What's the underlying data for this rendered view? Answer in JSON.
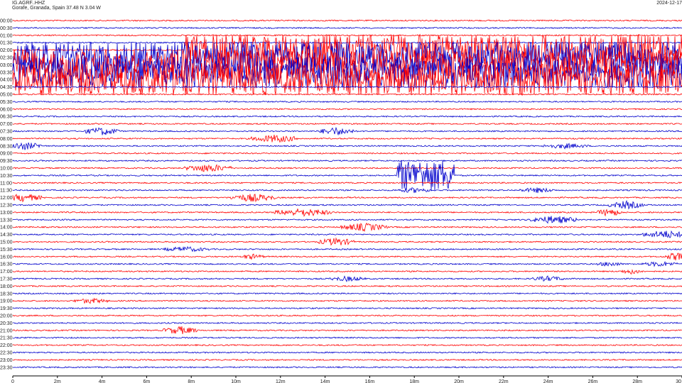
{
  "header": {
    "station": "IG.AGRF..HHZ",
    "location": "Gorafe, Granada, Spain  37.48 N 3.04 W",
    "date": "2024-12-17"
  },
  "chart_data": {
    "type": "line",
    "title": "",
    "xlabel": "",
    "ylabel": "",
    "row_labels": [
      "00:00",
      "00:30",
      "01:00",
      "01:30",
      "02:00",
      "02:30",
      "03:00",
      "03:30",
      "04:00",
      "04:30",
      "05:00",
      "05:30",
      "06:00",
      "06:30",
      "07:00",
      "07:30",
      "08:00",
      "08:30",
      "09:00",
      "09:30",
      "10:00",
      "10:30",
      "11:00",
      "11:30",
      "12:00",
      "12:30",
      "13:00",
      "13:30",
      "14:00",
      "14:30",
      "15:00",
      "15:30",
      "16:00",
      "16:30",
      "17:00",
      "17:30",
      "18:00",
      "18:30",
      "19:00",
      "19:30",
      "20:00",
      "20:30",
      "21:00",
      "21:30",
      "22:00",
      "22:30",
      "23:00",
      "23:30"
    ],
    "x_tick_values": [
      0,
      2,
      4,
      6,
      8,
      10,
      12,
      14,
      16,
      18,
      20,
      22,
      24,
      26,
      28,
      30
    ],
    "x_tick_labels": [
      "0",
      "2m",
      "4m",
      "6m",
      "8m",
      "10m",
      "12m",
      "14m",
      "16m",
      "18m",
      "20m",
      "22m",
      "24m",
      "26m",
      "28m",
      "30"
    ],
    "xlim": [
      0,
      30
    ],
    "trace_colors": [
      "#ff0000",
      "#0000cc"
    ],
    "events": [
      {
        "row": "02:00",
        "start_min": 8,
        "end_min": 30,
        "amplitude": "large"
      },
      {
        "row": "02:30",
        "start_min": 0,
        "end_min": 30,
        "amplitude": "large"
      },
      {
        "row": "03:00",
        "start_min": 0,
        "end_min": 30,
        "amplitude": "large"
      },
      {
        "row": "03:30",
        "start_min": 0,
        "end_min": 30,
        "amplitude": "large"
      },
      {
        "row": "04:00",
        "start_min": 0,
        "end_min": 30,
        "amplitude": "large"
      },
      {
        "row": "07:30",
        "start_min": 3.5,
        "end_min": 4.5,
        "amplitude": "medium"
      },
      {
        "row": "07:30",
        "start_min": 14,
        "end_min": 15,
        "amplitude": "medium"
      },
      {
        "row": "08:00",
        "start_min": 11,
        "end_min": 12.5,
        "amplitude": "medium"
      },
      {
        "row": "08:30",
        "start_min": 0,
        "end_min": 1,
        "amplitude": "medium"
      },
      {
        "row": "08:30",
        "start_min": 24,
        "end_min": 25.5,
        "amplitude": "small"
      },
      {
        "row": "10:00",
        "start_min": 8,
        "end_min": 9.5,
        "amplitude": "medium"
      },
      {
        "row": "10:30",
        "start_min": 17.5,
        "end_min": 19.5,
        "amplitude": "large"
      },
      {
        "row": "11:30",
        "start_min": 17.5,
        "end_min": 18.5,
        "amplitude": "small"
      },
      {
        "row": "11:30",
        "start_min": 23,
        "end_min": 24,
        "amplitude": "small"
      },
      {
        "row": "12:00",
        "start_min": 0,
        "end_min": 1,
        "amplitude": "medium"
      },
      {
        "row": "12:00",
        "start_min": 10,
        "end_min": 11.5,
        "amplitude": "medium"
      },
      {
        "row": "12:30",
        "start_min": 27,
        "end_min": 28,
        "amplitude": "medium"
      },
      {
        "row": "13:00",
        "start_min": 12,
        "end_min": 14,
        "amplitude": "medium"
      },
      {
        "row": "13:00",
        "start_min": 26.5,
        "end_min": 27,
        "amplitude": "medium"
      },
      {
        "row": "13:30",
        "start_min": 23.5,
        "end_min": 25,
        "amplitude": "medium"
      },
      {
        "row": "14:00",
        "start_min": 15,
        "end_min": 16.5,
        "amplitude": "medium"
      },
      {
        "row": "14:30",
        "start_min": 28.5,
        "end_min": 30,
        "amplitude": "medium"
      },
      {
        "row": "15:00",
        "start_min": 14,
        "end_min": 15,
        "amplitude": "medium"
      },
      {
        "row": "15:30",
        "start_min": 7,
        "end_min": 8.5,
        "amplitude": "small"
      },
      {
        "row": "16:00",
        "start_min": 10.5,
        "end_min": 11,
        "amplitude": "small"
      },
      {
        "row": "16:00",
        "start_min": 29.5,
        "end_min": 30,
        "amplitude": "medium"
      },
      {
        "row": "16:30",
        "start_min": 26.5,
        "end_min": 27,
        "amplitude": "small"
      },
      {
        "row": "16:30",
        "start_min": 28.5,
        "end_min": 29.5,
        "amplitude": "small"
      },
      {
        "row": "17:00",
        "start_min": 27.5,
        "end_min": 28,
        "amplitude": "small"
      },
      {
        "row": "17:30",
        "start_min": 14.5,
        "end_min": 15.5,
        "amplitude": "small"
      },
      {
        "row": "17:30",
        "start_min": 23.5,
        "end_min": 24.5,
        "amplitude": "small"
      },
      {
        "row": "19:00",
        "start_min": 3,
        "end_min": 4,
        "amplitude": "small"
      },
      {
        "row": "21:00",
        "start_min": 7,
        "end_min": 8,
        "amplitude": "medium"
      }
    ]
  }
}
